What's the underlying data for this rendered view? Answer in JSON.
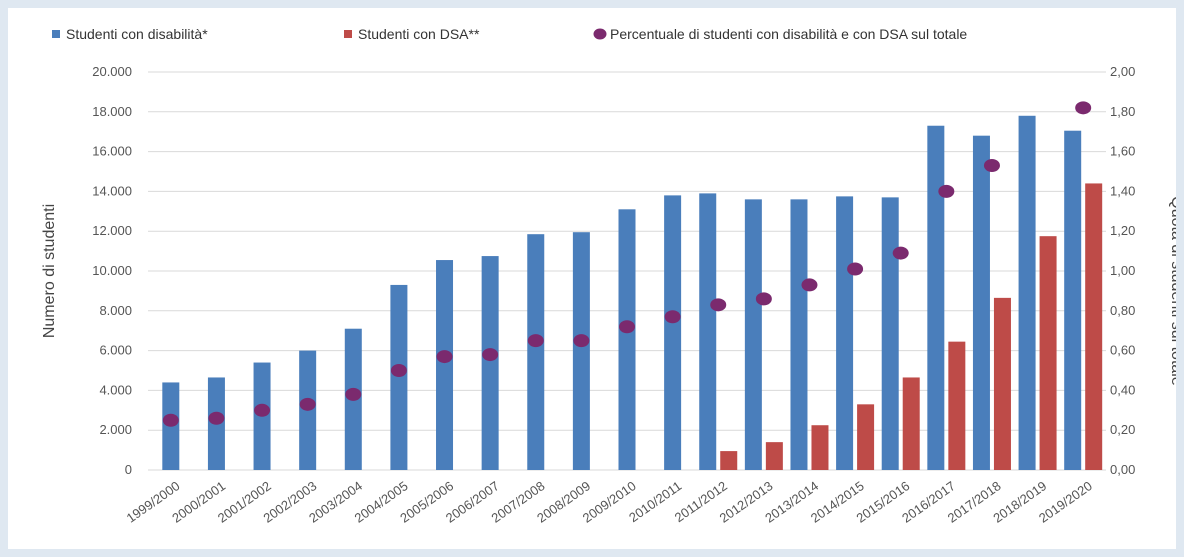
{
  "chart_data": {
    "type": "bar",
    "categories": [
      "1999/2000",
      "2000/2001",
      "2001/2002",
      "2002/2003",
      "2003/2004",
      "2004/2005",
      "2005/2006",
      "2006/2007",
      "2007/2008",
      "2008/2009",
      "2009/2010",
      "2010/2011",
      "2011/2012",
      "2012/2013",
      "2013/2014",
      "2014/2015",
      "2015/2016",
      "2016/2017",
      "2017/2018",
      "2018/2019",
      "2019/2020"
    ],
    "series": [
      {
        "name": "Studenti con disabilità*",
        "kind": "bar",
        "axis": "left",
        "color": "#4a7ebb",
        "values": [
          4400,
          4650,
          5400,
          6000,
          7100,
          9300,
          10550,
          10750,
          11850,
          11950,
          13100,
          13800,
          13900,
          13600,
          13600,
          13750,
          13700,
          17300,
          16800,
          17800,
          17050
        ]
      },
      {
        "name": "Studenti con DSA**",
        "kind": "bar",
        "axis": "left",
        "color": "#be4b48",
        "values": [
          null,
          null,
          null,
          null,
          null,
          null,
          null,
          null,
          null,
          null,
          null,
          null,
          950,
          1400,
          2250,
          3300,
          4650,
          6450,
          8650,
          11750,
          14400
        ]
      },
      {
        "name": "Percentuale di studenti con disabilità e con DSA sul totale",
        "kind": "scatter",
        "axis": "right",
        "color": "#7b2a6e",
        "values": [
          0.25,
          0.26,
          0.3,
          0.33,
          0.38,
          0.5,
          0.57,
          0.58,
          0.65,
          0.65,
          0.72,
          0.77,
          0.83,
          0.86,
          0.93,
          1.01,
          1.09,
          1.4,
          1.53,
          null,
          1.82
        ]
      }
    ],
    "y_left": {
      "label": "Numero di studenti",
      "lim": [
        0,
        20000
      ],
      "ticks": [
        0,
        2000,
        4000,
        6000,
        8000,
        10000,
        12000,
        14000,
        16000,
        18000,
        20000
      ],
      "tick_labels": [
        "0",
        "2.000",
        "4.000",
        "6.000",
        "8.000",
        "10.000",
        "12.000",
        "14.000",
        "16.000",
        "18.000",
        "20.000"
      ]
    },
    "y_right": {
      "label": "Quota di studenti sul totale",
      "lim": [
        0,
        2
      ],
      "ticks": [
        0,
        0.2,
        0.4,
        0.6,
        0.8,
        1.0,
        1.2,
        1.4,
        1.6,
        1.8,
        2.0
      ],
      "tick_labels": [
        "0,00",
        "0,20",
        "0,40",
        "0,60",
        "0,80",
        "1,00",
        "1,20",
        "1,40",
        "1,60",
        "1,80",
        "2,00"
      ]
    },
    "grid": true,
    "legend_position": "top"
  }
}
